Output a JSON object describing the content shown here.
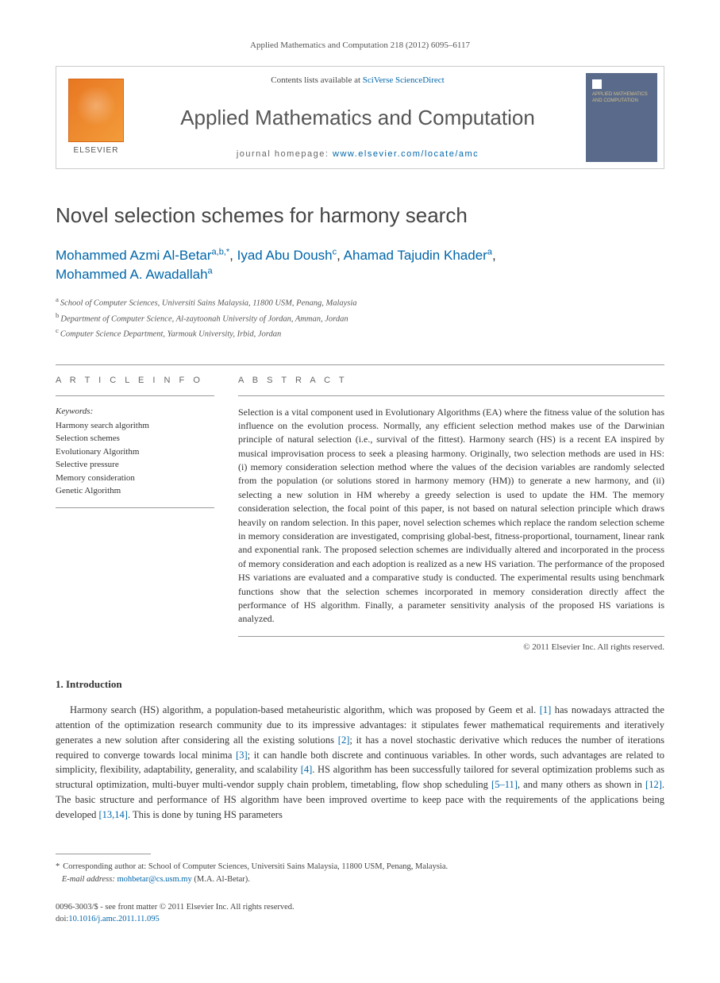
{
  "header": {
    "citation": "Applied Mathematics and Computation 218 (2012) 6095–6117"
  },
  "masthead": {
    "contents_prefix": "Contents lists available at ",
    "contents_link": "SciVerse ScienceDirect",
    "journal_name": "Applied Mathematics and Computation",
    "homepage_prefix": "journal homepage: ",
    "homepage_link": "www.elsevier.com/locate/amc",
    "publisher": "ELSEVIER",
    "cover_text": "APPLIED MATHEMATICS AND COMPUTATION"
  },
  "article": {
    "title": "Novel selection schemes for harmony search",
    "authors_html_parts": [
      {
        "name": "Mohammed Azmi Al-Betar",
        "affs": "a,b,",
        "corr": "*"
      },
      {
        "name": "Iyad Abu Doush",
        "affs": "c",
        "corr": ""
      },
      {
        "name": "Ahamad Tajudin Khader",
        "affs": "a",
        "corr": ""
      },
      {
        "name": "Mohammed A. Awadallah",
        "affs": "a",
        "corr": ""
      }
    ],
    "affiliations": [
      {
        "key": "a",
        "text": "School of Computer Sciences, Universiti Sains Malaysia, 11800 USM, Penang, Malaysia"
      },
      {
        "key": "b",
        "text": "Department of Computer Science, Al-zaytoonah University of Jordan, Amman, Jordan"
      },
      {
        "key": "c",
        "text": "Computer Science Department, Yarmouk University, Irbid, Jordan"
      }
    ]
  },
  "info": {
    "label": "A R T I C L E   I N F O",
    "keywords_label": "Keywords:",
    "keywords": [
      "Harmony search algorithm",
      "Selection schemes",
      "Evolutionary Algorithm",
      "Selective pressure",
      "Memory consideration",
      "Genetic Algorithm"
    ]
  },
  "abstract": {
    "label": "A B S T R A C T",
    "text": "Selection is a vital component used in Evolutionary Algorithms (EA) where the fitness value of the solution has influence on the evolution process. Normally, any efficient selection method makes use of the Darwinian principle of natural selection (i.e., survival of the fittest). Harmony search (HS) is a recent EA inspired by musical improvisation process to seek a pleasing harmony. Originally, two selection methods are used in HS: (i) memory consideration selection method where the values of the decision variables are randomly selected from the population (or solutions stored in harmony memory (HM)) to generate a new harmony, and (ii) selecting a new solution in HM whereby a greedy selection is used to update the HM. The memory consideration selection, the focal point of this paper, is not based on natural selection principle which draws heavily on random selection. In this paper, novel selection schemes which replace the random selection scheme in memory consideration are investigated, comprising global-best, fitness-proportional, tournament, linear rank and exponential rank. The proposed selection schemes are individually altered and incorporated in the process of memory consideration and each adoption is realized as a new HS variation. The performance of the proposed HS variations are evaluated and a comparative study is conducted. The experimental results using benchmark functions show that the selection schemes incorporated in memory consideration directly affect the performance of HS algorithm. Finally, a parameter sensitivity analysis of the proposed HS variations is analyzed.",
    "copyright": "© 2011 Elsevier Inc. All rights reserved."
  },
  "sections": {
    "intro_heading": "1. Introduction",
    "intro_body_pre": "Harmony search (HS) algorithm, a population-based metaheuristic algorithm, which was proposed by Geem et al. ",
    "intro_refs": {
      "r1": "[1]",
      "r2": "[2]",
      "r3": "[3]",
      "r4": "[4]",
      "r5_11": "[5–11]",
      "r12": "[12]",
      "r13_14": "[13,14]"
    },
    "intro_body_1": " has nowadays attracted the attention of the optimization research community due to its impressive advantages: it stipulates fewer mathematical requirements and iteratively generates a new solution after considering all the existing solutions ",
    "intro_body_2": "; it has a novel stochastic derivative which reduces the number of iterations required to converge towards local minima ",
    "intro_body_3": "; it can handle both discrete and continuous variables. In other words, such advantages are related to simplicity, flexibility, adaptability, generality, and scalability ",
    "intro_body_4": ". HS algorithm has been successfully tailored for several optimization problems such as structural optimization, multi-buyer multi-vendor supply chain problem, timetabling, flow shop scheduling ",
    "intro_body_5": ", and many others as shown in ",
    "intro_body_6": ". The basic structure and performance of HS algorithm have been improved overtime to keep pace with the requirements of the applications being developed ",
    "intro_body_7": ". This is done by tuning HS parameters"
  },
  "footnote": {
    "corr_label": "Corresponding author at: School of Computer Sciences, Universiti Sains Malaysia, 11800 USM, Penang, Malaysia.",
    "email_label": "E-mail address:",
    "email": "mohbetar@cs.usm.my",
    "email_author": "(M.A. Al-Betar)."
  },
  "footer": {
    "issn_line": "0096-3003/$ - see front matter © 2011 Elsevier Inc. All rights reserved.",
    "doi_label": "doi:",
    "doi": "10.1016/j.amc.2011.11.095"
  },
  "colors": {
    "link": "#0066aa",
    "elsevier_orange": "#e87722",
    "cover_bg": "#5a6a8a"
  }
}
